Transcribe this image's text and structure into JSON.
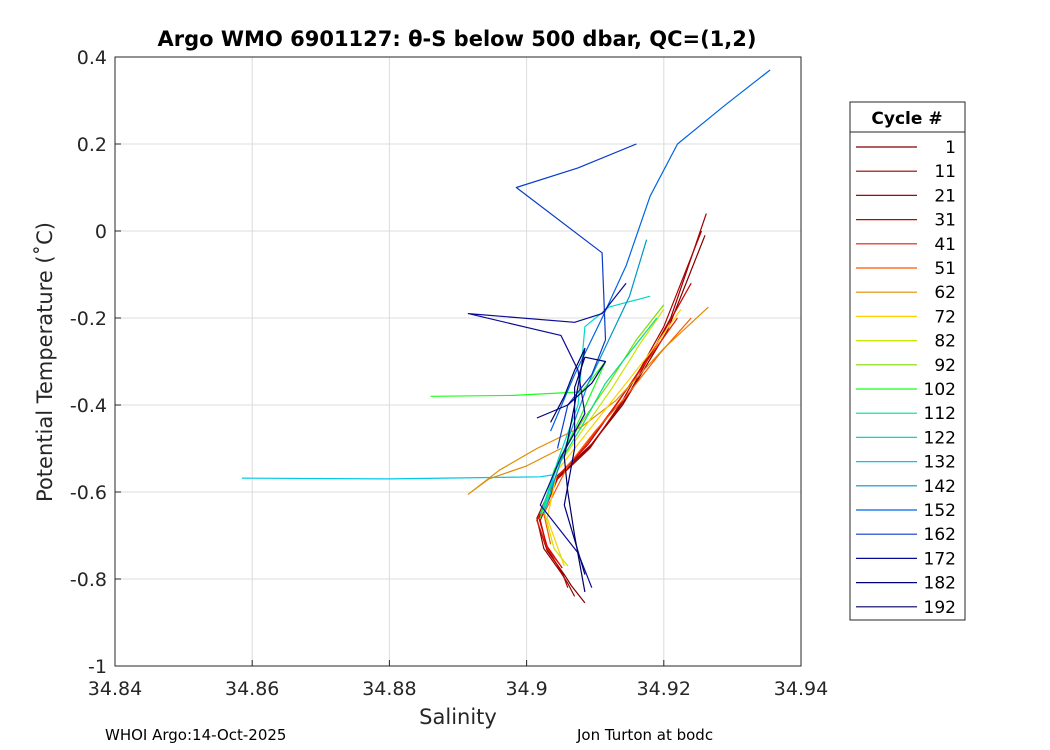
{
  "chart_data": {
    "type": "line",
    "title": "Argo WMO 6901127: θ-S below 500 dbar,  QC=(1,2)",
    "xlabel": "Salinity",
    "ylabel": "Potential Temperature (˚C)",
    "xlim": [
      34.84,
      34.94
    ],
    "ylim": [
      -1,
      0.4
    ],
    "xticks": [
      34.84,
      34.86,
      34.88,
      34.9,
      34.92,
      34.94
    ],
    "xtick_labels": [
      "34.84",
      "34.86",
      "34.88",
      "34.9",
      "34.92",
      "34.94"
    ],
    "yticks": [
      -1,
      -0.8,
      -0.6,
      -0.4,
      -0.2,
      0,
      0.2,
      0.4
    ],
    "ytick_labels": [
      "-1",
      "-0.8",
      "-0.6",
      "-0.4",
      "-0.2",
      "0",
      "0.2",
      "0.4"
    ],
    "grid": true,
    "legend_title": "Cycle #",
    "legend_position": "outside-right",
    "series": [
      {
        "name": "1",
        "color": "#800000",
        "x": [
          34.926,
          34.9205,
          34.914,
          34.909,
          34.904,
          34.9015,
          34.903,
          34.9055,
          34.9065,
          34.9085
        ],
        "y": [
          -0.01,
          -0.23,
          -0.4,
          -0.5,
          -0.575,
          -0.665,
          -0.735,
          -0.79,
          -0.815,
          -0.855
        ]
      },
      {
        "name": "11",
        "color": "#960000",
        "x": [
          34.9262,
          34.921,
          34.9147,
          34.9095,
          34.9043,
          34.9015,
          34.9025,
          34.905,
          34.906,
          34.907
        ],
        "y": [
          0.04,
          -0.2,
          -0.38,
          -0.49,
          -0.565,
          -0.66,
          -0.73,
          -0.785,
          -0.81,
          -0.84
        ]
      },
      {
        "name": "21",
        "color": "#b00000",
        "x": [
          34.9255,
          34.92,
          34.914,
          34.9092,
          34.9045,
          34.902,
          34.903,
          34.9053,
          34.906
        ],
        "y": [
          0.0,
          -0.22,
          -0.39,
          -0.5,
          -0.57,
          -0.665,
          -0.73,
          -0.79,
          -0.82
        ]
      },
      {
        "name": "31",
        "color": "#cc0000",
        "x": [
          34.924,
          34.919,
          34.9135,
          34.909,
          34.9045,
          34.9018,
          34.903,
          34.9052
        ],
        "y": [
          -0.12,
          -0.26,
          -0.39,
          -0.49,
          -0.565,
          -0.66,
          -0.725,
          -0.775
        ]
      },
      {
        "name": "41",
        "color": "#e61a00",
        "x": [
          34.922,
          34.9175,
          34.9125,
          34.9085,
          34.9042,
          34.9015,
          34.903,
          34.905
        ],
        "y": [
          -0.2,
          -0.3,
          -0.41,
          -0.495,
          -0.57,
          -0.665,
          -0.73,
          -0.77
        ]
      },
      {
        "name": "51",
        "color": "#ff5500",
        "x": [
          34.924,
          34.9195,
          34.9145,
          34.91,
          34.906,
          34.9025,
          34.9035
        ],
        "y": [
          -0.2,
          -0.28,
          -0.38,
          -0.46,
          -0.54,
          -0.65,
          -0.72
        ]
      },
      {
        "name": "62",
        "color": "#e08c00",
        "x": [
          34.9265,
          34.92,
          34.913,
          34.908,
          34.9015,
          34.896,
          34.8915,
          34.8945,
          34.9,
          34.905
        ],
        "y": [
          -0.175,
          -0.27,
          -0.39,
          -0.45,
          -0.5,
          -0.55,
          -0.605,
          -0.57,
          -0.54,
          -0.5
        ]
      },
      {
        "name": "72",
        "color": "#ffd000",
        "x": [
          34.9225,
          34.918,
          34.913,
          34.9085,
          34.9045,
          34.903,
          34.9055
        ],
        "y": [
          -0.18,
          -0.28,
          -0.38,
          -0.47,
          -0.55,
          -0.66,
          -0.77
        ]
      },
      {
        "name": "82",
        "color": "#c8e600",
        "x": [
          34.92,
          34.9165,
          34.9125,
          34.9085,
          34.905,
          34.9025,
          34.904,
          34.906
        ],
        "y": [
          -0.18,
          -0.26,
          -0.36,
          -0.45,
          -0.53,
          -0.64,
          -0.73,
          -0.77
        ]
      },
      {
        "name": "92",
        "color": "#80dc00",
        "x": [
          34.92,
          34.916,
          34.912,
          34.908,
          34.9045,
          34.9025
        ],
        "y": [
          -0.17,
          -0.25,
          -0.35,
          -0.44,
          -0.53,
          -0.64
        ]
      },
      {
        "name": "102",
        "color": "#1aff1a",
        "x": [
          34.886,
          34.898,
          34.908,
          34.9115,
          34.9075,
          34.904,
          34.902
        ],
        "y": [
          -0.38,
          -0.378,
          -0.37,
          -0.3,
          -0.44,
          -0.55,
          -0.66
        ]
      },
      {
        "name": "112",
        "color": "#00e08c",
        "x": [
          34.919,
          34.9155,
          34.9115,
          34.908,
          34.9045,
          34.902
        ],
        "y": [
          -0.2,
          -0.27,
          -0.35,
          -0.45,
          -0.54,
          -0.65
        ]
      },
      {
        "name": "122",
        "color": "#00d8c8",
        "x": [
          34.918,
          34.912,
          34.9085,
          34.9075,
          34.9045,
          34.9025
        ],
        "y": [
          -0.15,
          -0.175,
          -0.22,
          -0.4,
          -0.53,
          -0.64
        ]
      },
      {
        "name": "132",
        "color": "#00c8e6",
        "x": [
          34.8585,
          34.88,
          34.902,
          34.904,
          34.9035,
          34.9025
        ],
        "y": [
          -0.568,
          -0.57,
          -0.565,
          -0.56,
          -0.6,
          -0.65
        ]
      },
      {
        "name": "142",
        "color": "#0096c8",
        "x": [
          34.9175,
          34.915,
          34.912,
          34.909,
          34.906,
          34.9035
        ],
        "y": [
          -0.02,
          -0.15,
          -0.25,
          -0.35,
          -0.48,
          -0.6
        ]
      },
      {
        "name": "152",
        "color": "#0064e6",
        "x": [
          34.9355,
          34.929,
          34.922,
          34.918,
          34.9145,
          34.911,
          34.907,
          34.9035
        ],
        "y": [
          0.37,
          0.29,
          0.2,
          0.08,
          -0.08,
          -0.2,
          -0.33,
          -0.46
        ]
      },
      {
        "name": "162",
        "color": "#0a3cc8",
        "x": [
          34.916,
          34.9075,
          34.8985,
          34.911,
          34.9115,
          34.9095,
          34.906,
          34.9045
        ],
        "y": [
          0.2,
          0.145,
          0.1,
          -0.05,
          -0.25,
          -0.33,
          -0.4,
          -0.5
        ]
      },
      {
        "name": "172",
        "color": "#0a0a96",
        "x": [
          34.9145,
          34.911,
          34.907,
          34.8915,
          34.905,
          34.9075,
          34.9085,
          34.905,
          34.902,
          34.9075,
          34.9095
        ],
        "y": [
          -0.12,
          -0.19,
          -0.21,
          -0.19,
          -0.24,
          -0.32,
          -0.42,
          -0.52,
          -0.63,
          -0.74,
          -0.82
        ]
      },
      {
        "name": "182",
        "color": "#00007a",
        "x": [
          34.9015,
          34.906,
          34.9095,
          34.9115,
          34.9085,
          34.907,
          34.907,
          34.9055,
          34.9085
        ],
        "y": [
          -0.43,
          -0.4,
          -0.35,
          -0.3,
          -0.29,
          -0.36,
          -0.5,
          -0.63,
          -0.79
        ]
      },
      {
        "name": "192",
        "color": "#000064",
        "x": [
          34.9035,
          34.9055,
          34.907,
          34.9085,
          34.907,
          34.9055,
          34.906,
          34.907,
          34.9085
        ],
        "y": [
          -0.44,
          -0.38,
          -0.32,
          -0.27,
          -0.4,
          -0.52,
          -0.6,
          -0.7,
          -0.83
        ]
      }
    ]
  },
  "footer": {
    "left": "WHOI Argo:14-Oct-2025",
    "right": "Jon Turton at bodc"
  }
}
